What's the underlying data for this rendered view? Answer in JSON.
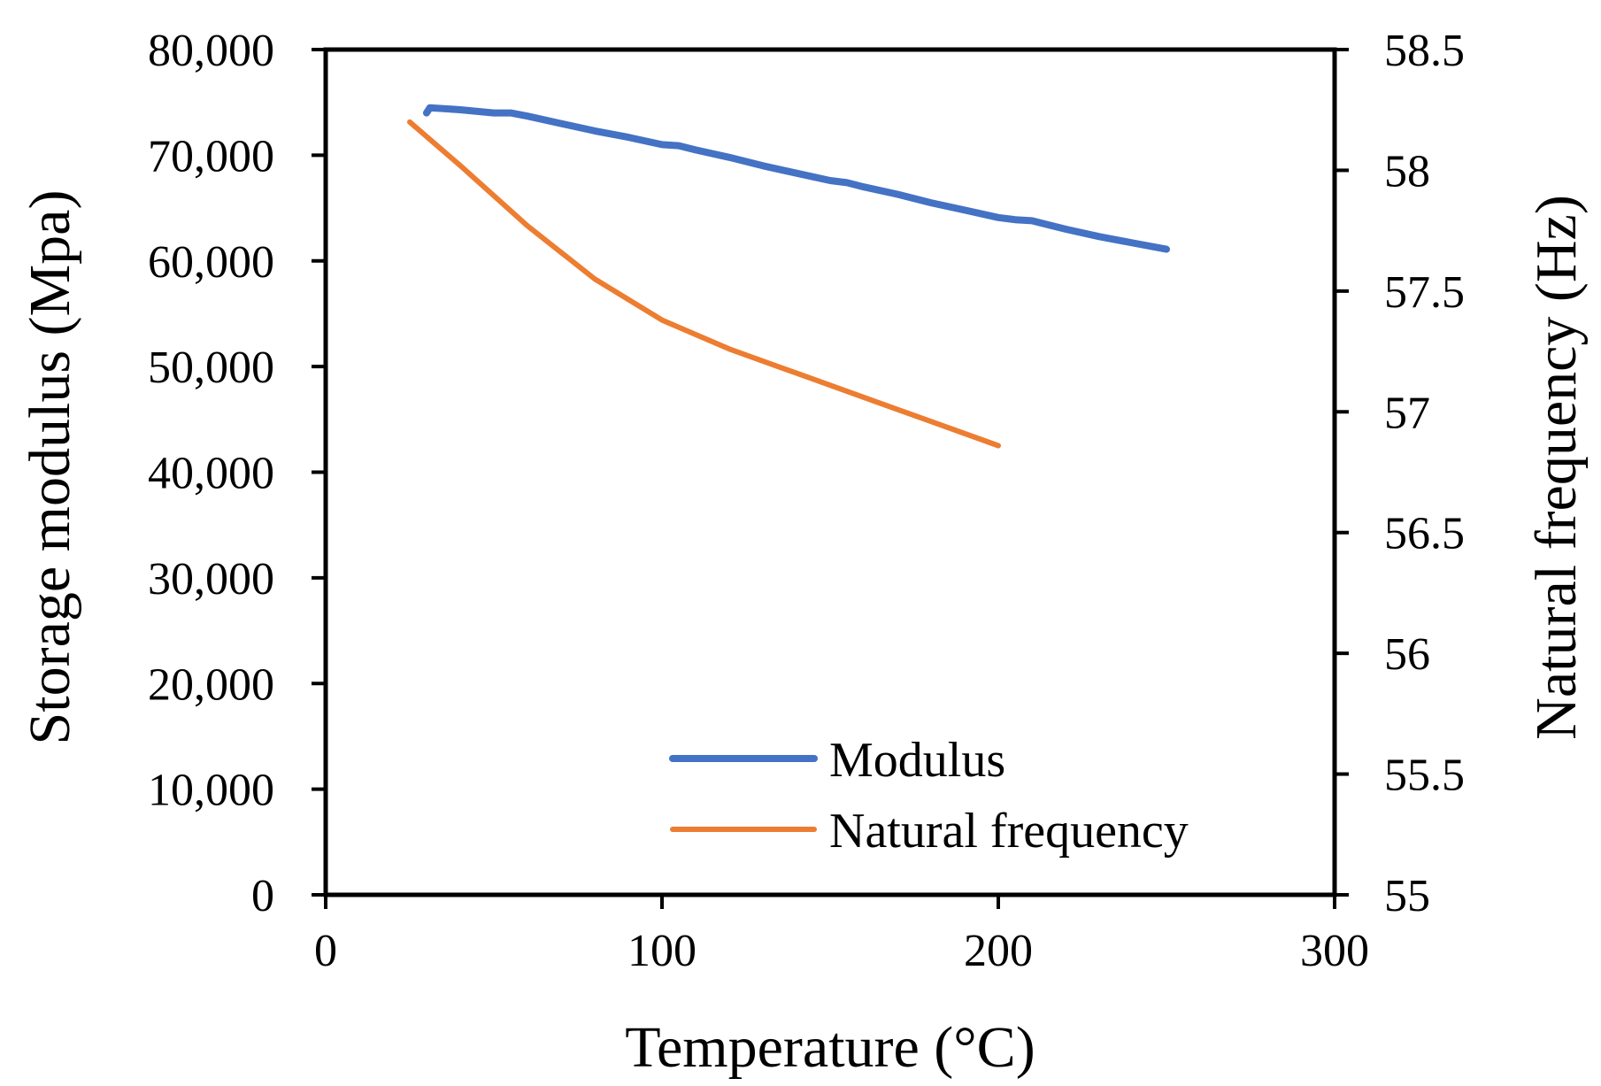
{
  "chart_data": {
    "type": "line",
    "title": "",
    "xlabel": "Temperature (°C)",
    "ylabel": "Storage modulus (Mpa)",
    "y2label": "Natural frequency (Hz)",
    "xlim": [
      0,
      300
    ],
    "ylim": [
      0,
      80000
    ],
    "y2lim": [
      55,
      58.5
    ],
    "x_ticks": [
      "0",
      "100",
      "200",
      "300"
    ],
    "y_ticks": [
      "0",
      "10,000",
      "20,000",
      "30,000",
      "40,000",
      "50,000",
      "60,000",
      "70,000",
      "80,000"
    ],
    "y2_ticks": [
      "55",
      "55.5",
      "56",
      "56.5",
      "57",
      "57.5",
      "58",
      "58.5"
    ],
    "grid": false,
    "legend_position": "bottom-right",
    "series": [
      {
        "name": "Modulus",
        "axis": "left",
        "color": "#4472C4",
        "x": [
          30,
          31,
          40,
          50,
          55,
          60,
          70,
          80,
          90,
          100,
          105,
          110,
          120,
          130,
          140,
          150,
          155,
          160,
          170,
          180,
          190,
          200,
          205,
          210,
          220,
          230,
          240,
          250
        ],
        "y": [
          74000,
          74500,
          74300,
          74000,
          74000,
          73700,
          73000,
          72300,
          71700,
          71000,
          70900,
          70500,
          69800,
          69000,
          68300,
          67600,
          67400,
          67000,
          66300,
          65500,
          64800,
          64100,
          63900,
          63800,
          63000,
          62300,
          61700,
          61100
        ]
      },
      {
        "name": "Natural frequency",
        "axis": "right",
        "color": "#ED7D31",
        "x": [
          25,
          40,
          60,
          80,
          100,
          120,
          140,
          160,
          180,
          200
        ],
        "y": [
          58.2,
          58.02,
          57.77,
          57.55,
          57.38,
          57.26,
          57.16,
          57.06,
          56.96,
          56.86
        ]
      }
    ]
  }
}
